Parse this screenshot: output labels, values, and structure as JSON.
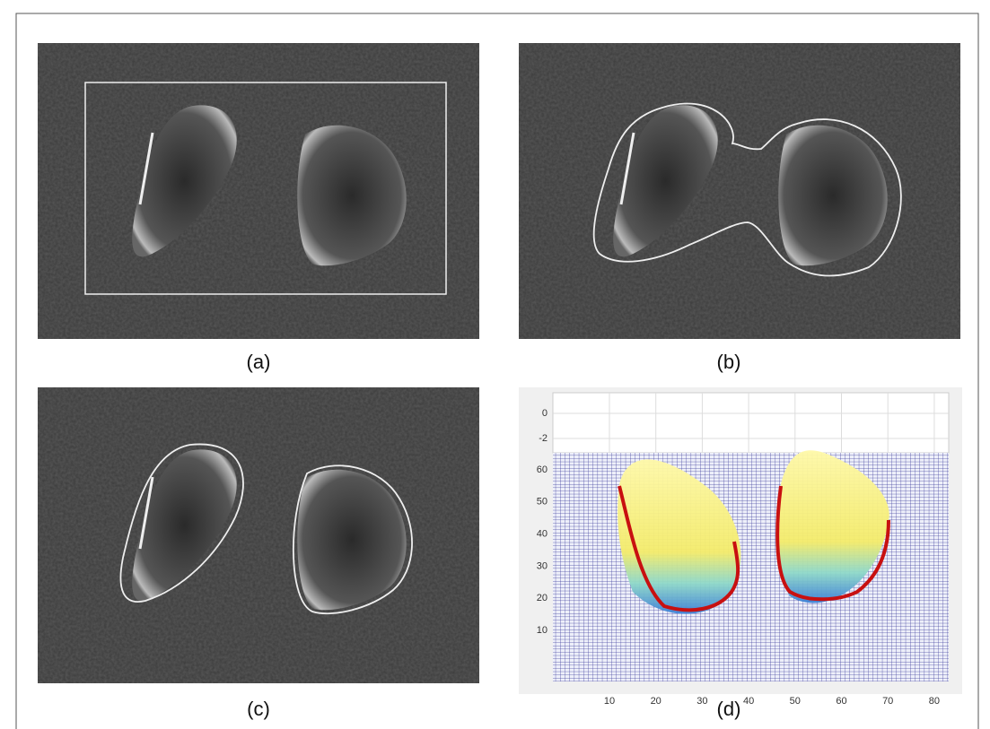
{
  "panels": [
    {
      "caption": "(a)"
    },
    {
      "caption": "(b)"
    },
    {
      "caption": "(c)"
    },
    {
      "caption": "(d)",
      "plot": {
        "xticks": [
          10,
          20,
          30,
          40,
          50,
          60,
          70,
          80
        ],
        "yticks": [
          10,
          20,
          30,
          40,
          50,
          60
        ],
        "zticks": [
          0,
          -2
        ]
      }
    }
  ]
}
